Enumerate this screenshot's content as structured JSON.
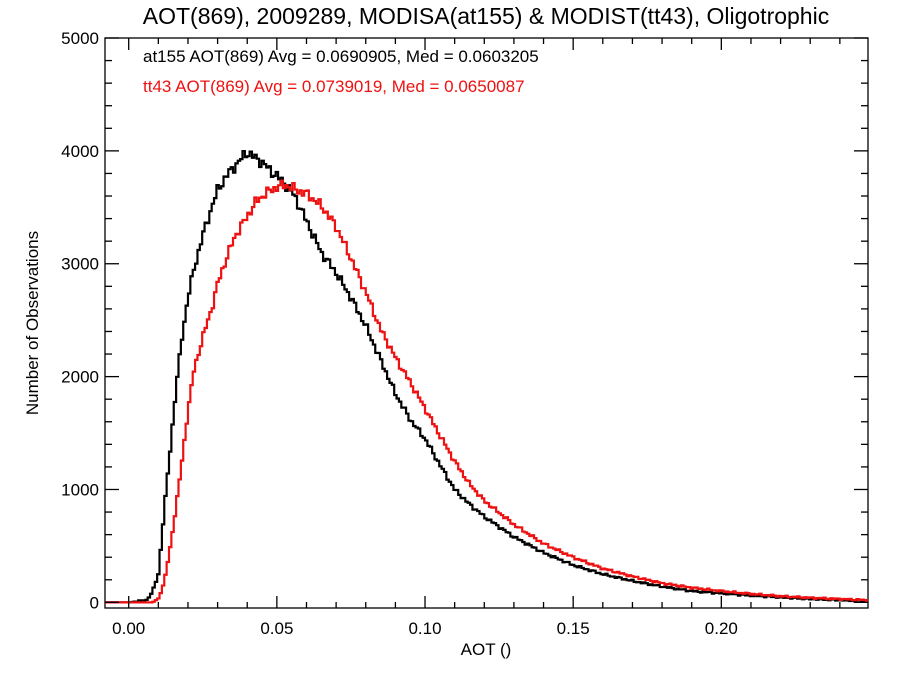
{
  "chart_data": {
    "type": "line",
    "title": "AOT(869), 2009289, MODISA(at155) & MODIST(tt43), Oligotrophic",
    "xlabel": "AOT ()",
    "ylabel": "Number of Observations",
    "xlim": [
      -0.008,
      0.2495
    ],
    "ylim": [
      -50,
      5000
    ],
    "x_ticks": [
      0.0,
      0.05,
      0.1,
      0.15,
      0.2
    ],
    "x_tick_labels": [
      "0.00",
      "0.05",
      "0.10",
      "0.15",
      "0.20"
    ],
    "y_ticks": [
      0,
      1000,
      2000,
      3000,
      4000,
      5000
    ],
    "y_tick_labels": [
      "0",
      "1000",
      "2000",
      "3000",
      "4000",
      "5000"
    ],
    "grid": false,
    "annotations": [
      {
        "text": "at155 AOT(869) Avg = 0.0690905, Med = 0.0603205",
        "color": "#000000"
      },
      {
        "text": "tt43 AOT(869) Avg = 0.0739019, Med = 0.0650087",
        "color": "#ee1111"
      }
    ],
    "series": [
      {
        "color": "#000000",
        "x": [
          -0.008,
          0.0,
          0.006,
          0.008,
          0.01,
          0.011,
          0.012,
          0.014,
          0.016,
          0.018,
          0.02,
          0.022,
          0.025,
          0.028,
          0.03,
          0.033,
          0.036,
          0.038,
          0.04,
          0.042,
          0.045,
          0.048,
          0.05,
          0.053,
          0.056,
          0.06,
          0.065,
          0.07,
          0.075,
          0.08,
          0.085,
          0.09,
          0.095,
          0.1,
          0.105,
          0.11,
          0.115,
          0.12,
          0.13,
          0.14,
          0.15,
          0.16,
          0.17,
          0.18,
          0.19,
          0.2,
          0.21,
          0.22,
          0.23,
          0.24,
          0.249
        ],
        "y": [
          0,
          0,
          20,
          90,
          250,
          520,
          820,
          1350,
          1900,
          2350,
          2700,
          2950,
          3250,
          3500,
          3650,
          3780,
          3870,
          3930,
          3990,
          3950,
          3900,
          3820,
          3780,
          3700,
          3600,
          3380,
          3100,
          2920,
          2700,
          2450,
          2150,
          1850,
          1620,
          1450,
          1220,
          1000,
          870,
          760,
          580,
          440,
          330,
          250,
          190,
          140,
          100,
          80,
          60,
          45,
          30,
          20,
          10
        ]
      },
      {
        "color": "#ee1111",
        "x": [
          -0.008,
          0.0,
          0.008,
          0.01,
          0.012,
          0.014,
          0.016,
          0.018,
          0.02,
          0.022,
          0.025,
          0.028,
          0.03,
          0.033,
          0.036,
          0.04,
          0.043,
          0.046,
          0.05,
          0.053,
          0.056,
          0.06,
          0.063,
          0.066,
          0.07,
          0.075,
          0.08,
          0.085,
          0.09,
          0.095,
          0.1,
          0.105,
          0.11,
          0.115,
          0.12,
          0.13,
          0.14,
          0.15,
          0.16,
          0.17,
          0.18,
          0.19,
          0.2,
          0.21,
          0.22,
          0.23,
          0.24,
          0.249
        ],
        "y": [
          0,
          0,
          0,
          30,
          180,
          480,
          850,
          1250,
          1700,
          2050,
          2350,
          2600,
          2820,
          3050,
          3250,
          3420,
          3550,
          3620,
          3680,
          3700,
          3660,
          3620,
          3560,
          3480,
          3330,
          3050,
          2750,
          2420,
          2170,
          1950,
          1720,
          1480,
          1250,
          1050,
          900,
          690,
          520,
          400,
          300,
          230,
          170,
          130,
          100,
          75,
          55,
          40,
          30,
          20
        ]
      }
    ]
  }
}
